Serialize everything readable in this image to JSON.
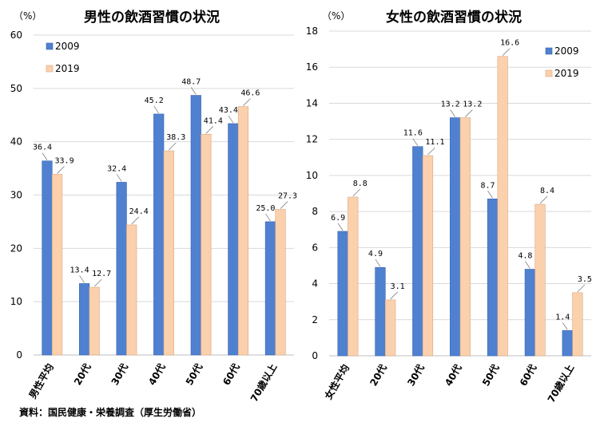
{
  "source": "資料：国民健康・栄養調査（厚生労働省）",
  "colors": {
    "s2009": "#4f81d0",
    "s2019": "#fbd0ad",
    "s2009_stroke": "#3a64ad",
    "s2019_stroke": "#d9a883",
    "grid": "#d9d9d9"
  },
  "chart_data": [
    {
      "type": "bar",
      "title": "男性の飲酒習慣の状況",
      "unit": "（%）",
      "categories": [
        "男性平均",
        "20代",
        "30代",
        "40代",
        "50代",
        "60代",
        "70歳以上"
      ],
      "series": [
        {
          "name": "2009",
          "values": [
            36.4,
            13.4,
            32.4,
            45.2,
            48.7,
            43.4,
            25.0
          ],
          "labels": [
            "36.4",
            "13.4",
            "32.4",
            "45.2",
            "48.7",
            "43.4",
            "25.0"
          ]
        },
        {
          "name": "2019",
          "values": [
            33.9,
            12.7,
            24.4,
            38.3,
            41.4,
            46.6,
            27.3
          ],
          "labels": [
            "33.9",
            "12.7",
            "24.4",
            "38.3",
            "41.4",
            "46.6",
            "27.3"
          ]
        }
      ],
      "ylim": [
        0,
        60
      ],
      "yticks": [
        "0",
        "10",
        "20",
        "30",
        "40",
        "50",
        "60"
      ],
      "grid": true,
      "legend_position": "top-left"
    },
    {
      "type": "bar",
      "title": "女性の飲酒習慣の状況",
      "unit": "（%）",
      "categories": [
        "女性平均",
        "20代",
        "30代",
        "40代",
        "50代",
        "60代",
        "70歳以上"
      ],
      "series": [
        {
          "name": "2009",
          "values": [
            6.9,
            4.9,
            11.6,
            13.2,
            8.7,
            4.8,
            1.4
          ],
          "labels": [
            "6.9",
            "4.9",
            "11.6",
            "13.2",
            "8.7",
            "4.8",
            "1.4"
          ]
        },
        {
          "name": "2019",
          "values": [
            8.8,
            3.1,
            11.1,
            13.2,
            16.6,
            8.4,
            3.5
          ],
          "labels": [
            "8.8",
            "3.1",
            "11.1",
            "13.2",
            "16.6",
            "8.4",
            "3.5"
          ]
        }
      ],
      "ylim": [
        0,
        18
      ],
      "yticks": [
        "0",
        "2",
        "4",
        "6",
        "8",
        "10",
        "12",
        "14",
        "16",
        "18"
      ],
      "grid": true,
      "legend_position": "top-right"
    }
  ]
}
